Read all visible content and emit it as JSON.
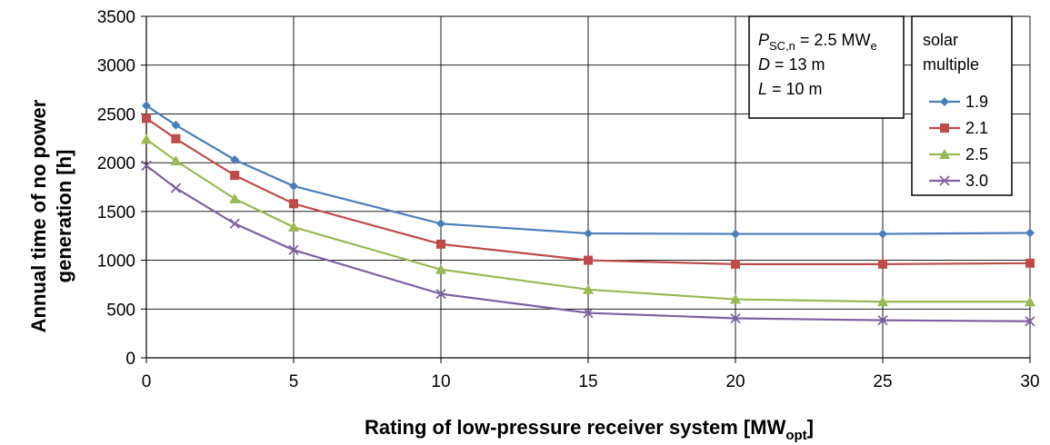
{
  "chart_data": {
    "type": "line",
    "xlabel": "Rating of low-pressure receiver system [MW",
    "xlabel_sub": "opt",
    "xlabel_end": "]",
    "ylabel_line1": "Annual time of no power",
    "ylabel_line2": "generation [h]",
    "xlim": [
      0,
      30
    ],
    "ylim": [
      0,
      3500
    ],
    "x_ticks": [
      "0",
      "5",
      "10",
      "15",
      "20",
      "25",
      "30"
    ],
    "y_ticks": [
      "0",
      "500",
      "1000",
      "1500",
      "2000",
      "2500",
      "3000",
      "3500"
    ],
    "grid": true,
    "x": [
      0,
      1,
      3,
      5,
      10,
      15,
      20,
      25,
      30
    ],
    "series": [
      {
        "name": "1.9",
        "color": "#4a7ebb",
        "marker": "diamond",
        "values": [
          2585,
          2385,
          2030,
          1760,
          1375,
          1275,
          1270,
          1270,
          1280
        ]
      },
      {
        "name": "2.1",
        "color": "#be4b48",
        "marker": "square",
        "values": [
          2455,
          2245,
          1870,
          1580,
          1165,
          1000,
          960,
          960,
          970
        ]
      },
      {
        "name": "2.5",
        "color": "#98b954",
        "marker": "triangle",
        "values": [
          2240,
          2020,
          1630,
          1340,
          905,
          700,
          600,
          575,
          575
        ]
      },
      {
        "name": "3.0",
        "color": "#7d60a0",
        "marker": "x",
        "values": [
          1970,
          1740,
          1375,
          1105,
          655,
          460,
          405,
          385,
          375
        ]
      }
    ],
    "annotation": {
      "line1_var": "P",
      "line1_sub": "SC,n",
      "line1_rest": " = 2.5 MW",
      "line1_unit_sub": "e",
      "line2_var": "D",
      "line2_rest": " = 13 m",
      "line3_var": "L",
      "line3_rest": " = 10 m"
    },
    "legend": {
      "title_line1": "solar",
      "title_line2": "multiple",
      "position": "top-right"
    }
  }
}
